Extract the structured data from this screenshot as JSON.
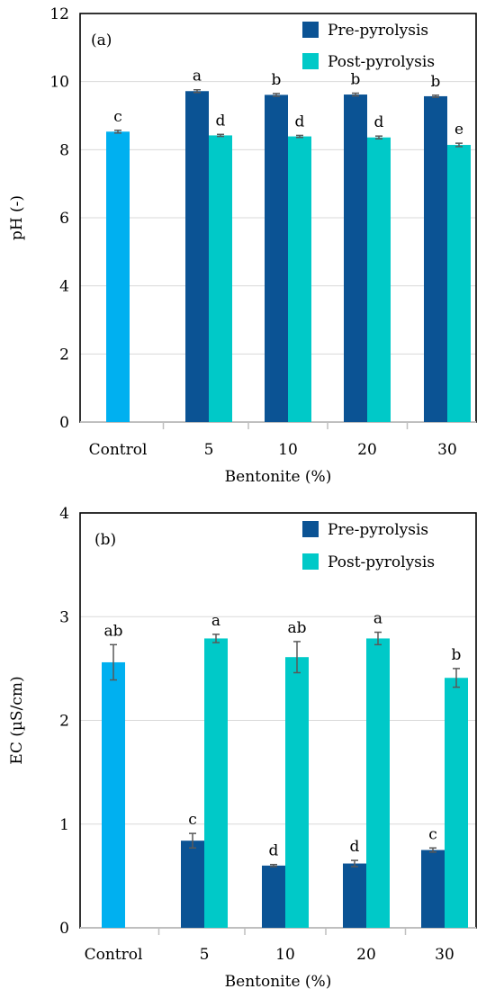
{
  "chart_data": [
    {
      "type": "bar",
      "panel_label": "(a)",
      "categories": [
        "Control",
        "5",
        "10",
        "20",
        "30"
      ],
      "xlabel": "Bentonite (%)",
      "ylabel": "pH (-)",
      "ylim": [
        0,
        12
      ],
      "yticks": [
        "0",
        "2",
        "4",
        "6",
        "8",
        "10",
        "12"
      ],
      "grid": true,
      "legend_position": "top-right",
      "control": {
        "value": 8.53,
        "error": 0.04,
        "label": "c",
        "color": "#00b0f0"
      },
      "series": [
        {
          "name": "Pre-pyrolysis",
          "color": "#0b5394",
          "values": [
            null,
            9.72,
            9.61,
            9.62,
            9.57
          ],
          "errors": [
            null,
            0.04,
            0.04,
            0.04,
            0.03
          ],
          "labels": [
            null,
            "a",
            "b",
            "b",
            "b"
          ]
        },
        {
          "name": "Post-pyrolysis",
          "color": "#00c9c8",
          "values": [
            null,
            8.42,
            8.39,
            8.36,
            8.14
          ],
          "errors": [
            null,
            0.03,
            0.03,
            0.04,
            0.05
          ],
          "labels": [
            null,
            "d",
            "d",
            "d",
            "e"
          ]
        }
      ]
    },
    {
      "type": "bar",
      "panel_label": "(b)",
      "categories": [
        "Control",
        "5",
        "10",
        "20",
        "30"
      ],
      "xlabel": "Bentonite (%)",
      "ylabel": "EC (µS/cm)",
      "ylim": [
        0,
        4
      ],
      "yticks": [
        "0",
        "1",
        "2",
        "3",
        "4"
      ],
      "grid": true,
      "legend_position": "top-right",
      "control": {
        "value": 2.56,
        "error": 0.17,
        "label": "ab",
        "color": "#00b0f0"
      },
      "series": [
        {
          "name": "Pre-pyrolysis",
          "color": "#0b5394",
          "values": [
            null,
            0.84,
            0.6,
            0.62,
            0.75
          ],
          "errors": [
            null,
            0.07,
            0.01,
            0.03,
            0.02
          ],
          "labels": [
            null,
            "c",
            "d",
            "d",
            "c"
          ]
        },
        {
          "name": "Post-pyrolysis",
          "color": "#00c9c8",
          "values": [
            null,
            2.79,
            2.61,
            2.79,
            2.41
          ],
          "errors": [
            null,
            0.04,
            0.15,
            0.06,
            0.09
          ],
          "labels": [
            null,
            "a",
            "ab",
            "a",
            "b"
          ]
        }
      ]
    }
  ]
}
